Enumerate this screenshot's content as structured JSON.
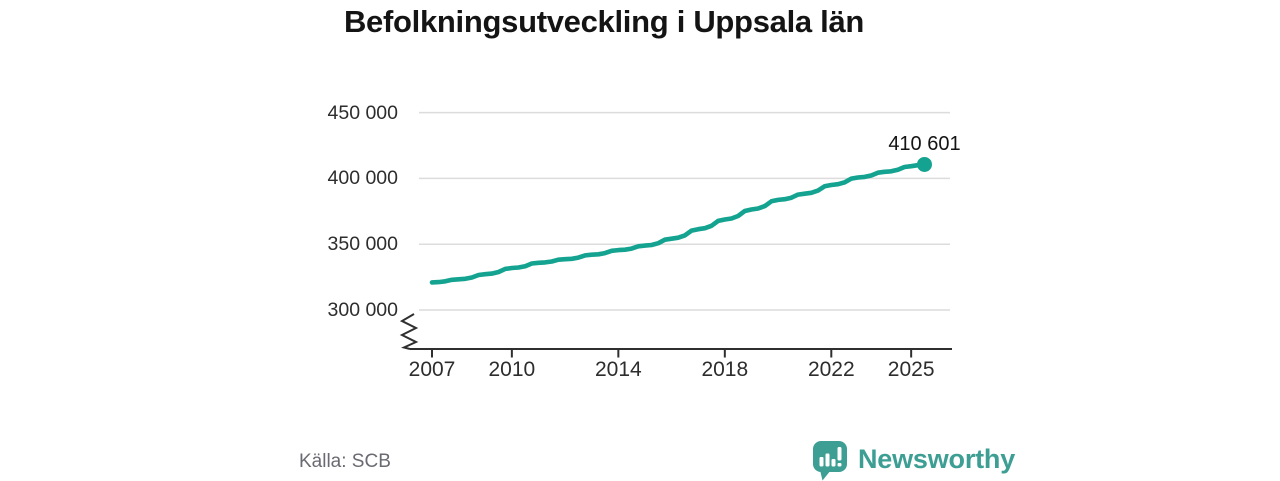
{
  "chart_data": {
    "type": "line",
    "title": "Befolkningsutveckling i Uppsala län",
    "xlabel": "",
    "ylabel": "",
    "grid": "horizontal",
    "legend": "none",
    "axis_break": true,
    "xlim": [
      2006.6,
      2027.5
    ],
    "ylim": [
      270000,
      460000
    ],
    "x_ticks": {
      "values": [
        2007,
        2010,
        2014,
        2018,
        2022,
        2025
      ],
      "labels": [
        "2007",
        "2010",
        "2014",
        "2018",
        "2022",
        "2025"
      ]
    },
    "y_ticks": {
      "values": [
        300000,
        350000,
        400000,
        450000
      ],
      "labels": [
        "300 000",
        "350 000",
        "400 000",
        "450 000"
      ]
    },
    "end_label": "410 601",
    "end_value": 410601,
    "series": [
      {
        "color": "#14a390",
        "x": [
          2007,
          2007.25,
          2007.5,
          2007.75,
          2008,
          2008.25,
          2008.5,
          2008.75,
          2009,
          2009.25,
          2009.5,
          2009.75,
          2010,
          2010.25,
          2010.5,
          2010.75,
          2011,
          2011.25,
          2011.5,
          2011.75,
          2012,
          2012.25,
          2012.5,
          2012.75,
          2013,
          2013.25,
          2013.5,
          2013.75,
          2014,
          2014.25,
          2014.5,
          2014.75,
          2015,
          2015.25,
          2015.5,
          2015.75,
          2016,
          2016.25,
          2016.5,
          2016.75,
          2017,
          2017.25,
          2017.5,
          2017.75,
          2018,
          2018.25,
          2018.5,
          2018.75,
          2019,
          2019.25,
          2019.5,
          2019.75,
          2020,
          2020.25,
          2020.5,
          2020.75,
          2021,
          2021.25,
          2021.5,
          2021.75,
          2022,
          2022.25,
          2022.5,
          2022.75,
          2023,
          2023.25,
          2023.5,
          2023.75,
          2024,
          2024.25,
          2024.5,
          2024.75,
          2025,
          2025.25,
          2025.5
        ],
        "y": [
          321000,
          321230,
          321805,
          322955,
          323300,
          323690,
          324665,
          326615,
          327200,
          327670,
          328845,
          331195,
          331900,
          332300,
          333300,
          335300,
          335900,
          336170,
          336845,
          338195,
          338600,
          338940,
          339790,
          341490,
          342000,
          342350,
          343225,
          344975,
          345500,
          345840,
          346690,
          348390,
          348900,
          349430,
          350755,
          353405,
          354200,
          354920,
          356720,
          360320,
          361400,
          362140,
          363990,
          367690,
          368800,
          369560,
          371460,
          375260,
          376400,
          377130,
          378955,
          382605,
          383700,
          384170,
          385345,
          387695,
          388400,
          389060,
          390710,
          394010,
          395000,
          395570,
          396995,
          399845,
          400700,
          401130,
          402205,
          404355,
          405000,
          405430,
          406505,
          408655,
          409300,
          410000,
          410601
        ]
      }
    ]
  },
  "footer": {
    "source": "Källa: SCB"
  },
  "branding": {
    "name": "Newsworthy",
    "icon": "speech-bubble-bar-chart-icon",
    "color": "#3d9e94"
  },
  "colors": {
    "title": "#141414",
    "text": "#2d2d2d",
    "muted": "#6a6a72",
    "grid": "#dcdcdc",
    "axis": "#2f2f2f",
    "background": "#ffffff"
  }
}
